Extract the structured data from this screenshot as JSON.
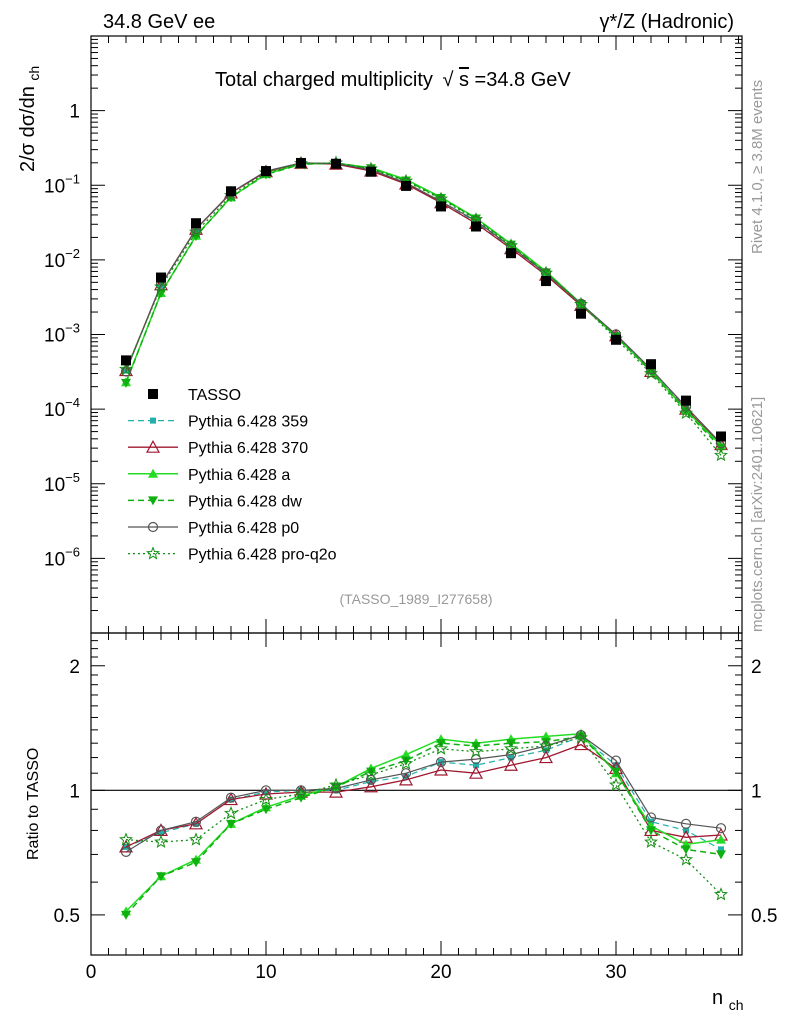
{
  "header": {
    "left": "34.8 GeV ee",
    "right": "γ*/Z (Hadronic)"
  },
  "side_labels": {
    "rivet": "Rivet 4.1.0, ≥ 3.8M events",
    "mcplots": "mcplots.cern.ch [arXiv:2401.10621]"
  },
  "colors": {
    "TASSO": "#000000",
    "p359": "#20b2aa",
    "p370": "#a01830",
    "pa": "#22dd22",
    "pdw": "#10b010",
    "pp0": "#555555",
    "pq2o": "#138f13"
  },
  "chart_data": {
    "type": "line",
    "title_text": "Total charged multiplicity",
    "title_sqrt": "s",
    "title_value": "=34.8 GeV",
    "ylabel_main": "2/σ   dσ/dn",
    "ylabel_main_sub": "ch",
    "xlabel": "n",
    "xlabel_sub": "ch",
    "ylabel_ratio": "Ratio to TASSO",
    "analysis_id": "(TASSO_1989_I277658)",
    "xlim": [
      0,
      37.2
    ],
    "ylim_main": [
      1e-07,
      10
    ],
    "ylim_ratio": [
      0.4,
      2.4
    ],
    "x_ticks": [
      "0",
      "10",
      "20",
      "30"
    ],
    "y_ticks_main": [
      {
        "base": "10",
        "exp": "−6"
      },
      {
        "base": "10",
        "exp": "−5"
      },
      {
        "base": "10",
        "exp": "−4"
      },
      {
        "base": "10",
        "exp": "−3"
      },
      {
        "base": "10",
        "exp": "−2"
      },
      {
        "base": "10",
        "exp": "−1"
      },
      {
        "base": "1",
        "exp": ""
      }
    ],
    "y_ticks_ratio": [
      "0.5",
      "1",
      "2"
    ],
    "x": [
      2,
      4,
      6,
      8,
      10,
      12,
      14,
      16,
      18,
      20,
      22,
      24,
      26,
      28,
      30,
      32,
      34,
      36
    ],
    "data": {
      "name": "TASSO",
      "values": [
        0.00045,
        0.0058,
        0.031,
        0.083,
        0.155,
        0.199,
        0.194,
        0.152,
        0.098,
        0.052,
        0.028,
        0.0123,
        0.0052,
        0.0019,
        0.00085,
        0.0004,
        0.00013,
        4.3e-05
      ]
    },
    "series": [
      {
        "name": "Pythia 6.428 359",
        "key": "p359",
        "ratio": [
          0.73,
          0.79,
          0.83,
          0.95,
          0.99,
          1.0,
          1.0,
          1.05,
          1.08,
          1.17,
          1.15,
          1.2,
          1.25,
          1.35,
          1.15,
          0.84,
          0.8,
          0.72
        ]
      },
      {
        "name": "Pythia 6.428 370",
        "key": "p370",
        "ratio": [
          0.73,
          0.8,
          0.83,
          0.95,
          0.98,
          0.99,
          0.99,
          1.02,
          1.06,
          1.12,
          1.1,
          1.15,
          1.2,
          1.29,
          1.13,
          0.8,
          0.77,
          0.78
        ]
      },
      {
        "name": "Pythia 6.428 a",
        "key": "pa",
        "ratio": [
          0.51,
          0.62,
          0.68,
          0.83,
          0.91,
          0.97,
          1.02,
          1.13,
          1.22,
          1.33,
          1.3,
          1.33,
          1.35,
          1.37,
          1.1,
          0.82,
          0.74,
          0.76
        ]
      },
      {
        "name": "Pythia 6.428 dw",
        "key": "pdw",
        "ratio": [
          0.5,
          0.62,
          0.67,
          0.83,
          0.9,
          0.96,
          1.02,
          1.11,
          1.18,
          1.3,
          1.28,
          1.3,
          1.31,
          1.35,
          1.11,
          0.8,
          0.72,
          0.7
        ]
      },
      {
        "name": "Pythia 6.428 p0",
        "key": "pp0",
        "ratio": [
          0.71,
          0.8,
          0.84,
          0.96,
          1.0,
          1.0,
          1.01,
          1.06,
          1.1,
          1.17,
          1.19,
          1.22,
          1.28,
          1.36,
          1.18,
          0.86,
          0.83,
          0.81
        ]
      },
      {
        "name": "Pythia 6.428 pro-q2o",
        "key": "pq2o",
        "ratio": [
          0.76,
          0.75,
          0.76,
          0.88,
          0.95,
          0.98,
          1.03,
          1.09,
          1.16,
          1.26,
          1.24,
          1.26,
          1.28,
          1.34,
          1.03,
          0.75,
          0.68,
          0.56
        ]
      }
    ]
  }
}
